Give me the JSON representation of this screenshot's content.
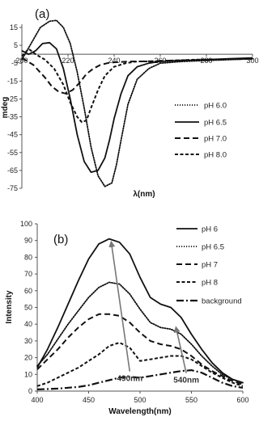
{
  "chart_data": [
    {
      "type": "line",
      "panel_label": "(a)",
      "xlabel": "λ(nm)",
      "ylabel": "mdeg",
      "xlim": [
        200,
        300
      ],
      "ylim": [
        -75,
        15
      ],
      "xticks": [
        200,
        220,
        240,
        260,
        280,
        300
      ],
      "yticks": [
        15,
        5,
        -5,
        -15,
        -25,
        -35,
        -45,
        -55,
        -65,
        -75
      ],
      "xaxis_crosses_y": 0,
      "grid": false,
      "legend_position": "right-middle",
      "series": [
        {
          "name": "pH 6.0",
          "style": "dotted",
          "x": [
            200,
            204,
            208,
            212,
            215,
            218,
            221,
            224,
            227,
            230,
            233,
            236,
            239,
            241,
            243,
            246,
            250,
            255,
            260,
            270,
            280,
            290,
            300
          ],
          "y": [
            -3,
            6,
            15,
            18.5,
            19,
            15,
            6,
            -10,
            -30,
            -52,
            -68,
            -74,
            -72,
            -62,
            -48,
            -28,
            -14,
            -8,
            -5,
            -4,
            -3.5,
            -3,
            -2.5
          ]
        },
        {
          "name": "pH 6.5",
          "style": "solid",
          "x": [
            200,
            203,
            206,
            209,
            212,
            215,
            218,
            221,
            224,
            227,
            230,
            233,
            236,
            238,
            240,
            243,
            246,
            250,
            255,
            260,
            270,
            280,
            290,
            300
          ],
          "y": [
            2,
            0,
            2,
            6,
            6.5,
            3,
            -8,
            -25,
            -45,
            -60,
            -66,
            -65,
            -58,
            -48,
            -36,
            -22,
            -12,
            -7,
            -5,
            -4,
            -3.5,
            -3,
            -2.5,
            -2
          ]
        },
        {
          "name": "pH 7.0",
          "style": "dashed",
          "x": [
            200,
            205,
            210,
            213,
            216,
            219,
            222,
            225,
            228,
            231,
            234,
            237,
            240,
            244,
            248,
            252,
            258,
            265,
            275,
            285,
            300
          ],
          "y": [
            -2,
            -6,
            -13,
            -18,
            -21,
            -22,
            -20,
            -16,
            -11,
            -8,
            -6,
            -5,
            -4.5,
            -4.2,
            -4,
            -4,
            -3.8,
            -3.5,
            -3.2,
            -3,
            -2.5
          ]
        },
        {
          "name": "pH 8.0",
          "style": "short-dashed",
          "x": [
            200,
            203,
            206,
            210,
            214,
            218,
            221,
            224,
            226,
            228,
            230,
            233,
            236,
            240,
            245,
            250,
            258,
            265,
            275,
            285,
            300
          ],
          "y": [
            -1,
            3,
            0,
            -3,
            -8,
            -17,
            -27,
            -35,
            -38,
            -37,
            -30,
            -20,
            -12,
            -7,
            -5,
            -4,
            -4,
            -3.5,
            -3,
            -3,
            -2.5
          ]
        }
      ]
    },
    {
      "type": "line",
      "panel_label": "(b)",
      "xlabel": "Wavelength(nm)",
      "ylabel": "Intensity",
      "xlim": [
        400,
        600
      ],
      "ylim": [
        0,
        100
      ],
      "xticks": [
        400,
        450,
        500,
        550,
        600
      ],
      "yticks": [
        0,
        10,
        20,
        30,
        40,
        50,
        60,
        70,
        80,
        90,
        100
      ],
      "grid": false,
      "legend_position": "right-top",
      "annotations": [
        {
          "text": "490nm",
          "x": 490,
          "y": 6,
          "arrow_to": [
            472,
            89
          ]
        },
        {
          "text": "540nm",
          "x": 545,
          "y": 5,
          "arrow_to": [
            535,
            38
          ]
        }
      ],
      "series": [
        {
          "name": "pH 6",
          "style": "solid",
          "x": [
            400,
            410,
            420,
            430,
            440,
            450,
            460,
            470,
            480,
            490,
            500,
            510,
            520,
            530,
            540,
            550,
            560,
            570,
            580,
            590,
            600
          ],
          "y": [
            14,
            25,
            38,
            52,
            66,
            79,
            88,
            91,
            89,
            82,
            68,
            56,
            52,
            50,
            44,
            34,
            25,
            17,
            11,
            7,
            5
          ]
        },
        {
          "name": "pH 6.5",
          "style": "dotted",
          "x": [
            400,
            410,
            420,
            430,
            440,
            450,
            460,
            470,
            480,
            490,
            500,
            510,
            520,
            530,
            540,
            550,
            560,
            570,
            580,
            590,
            600
          ],
          "y": [
            15,
            22,
            31,
            40,
            48,
            56,
            62,
            65,
            64,
            58,
            49,
            41,
            38,
            37,
            34,
            28,
            21,
            15,
            10,
            7,
            5
          ]
        },
        {
          "name": "pH 7",
          "style": "dashed",
          "x": [
            400,
            410,
            420,
            430,
            440,
            450,
            460,
            470,
            480,
            490,
            500,
            510,
            520,
            530,
            540,
            550,
            560,
            570,
            580,
            590,
            600
          ],
          "y": [
            13,
            19,
            25,
            32,
            38,
            43,
            46,
            46,
            45,
            41,
            35,
            30,
            28,
            27,
            25,
            21,
            16,
            12,
            9,
            6,
            4
          ]
        },
        {
          "name": "pH 8",
          "style": "short-dashed",
          "x": [
            400,
            410,
            420,
            430,
            440,
            450,
            460,
            470,
            480,
            490,
            500,
            510,
            520,
            530,
            540,
            550,
            560,
            570,
            580,
            590,
            600
          ],
          "y": [
            3,
            5,
            8,
            11,
            14,
            18,
            22,
            27,
            29,
            26,
            18,
            19,
            20,
            21,
            21,
            19,
            15,
            11,
            8,
            5,
            3
          ]
        },
        {
          "name": "background",
          "style": "dash-dot",
          "x": [
            400,
            420,
            440,
            450,
            460,
            470,
            480,
            490,
            500,
            510,
            520,
            530,
            540,
            550,
            560,
            570,
            580,
            590,
            600
          ],
          "y": [
            1,
            1.5,
            2.5,
            3.5,
            5,
            6.5,
            8,
            8.5,
            8,
            9,
            10,
            11,
            12,
            12.5,
            11,
            8,
            5,
            3,
            2
          ]
        }
      ]
    }
  ]
}
